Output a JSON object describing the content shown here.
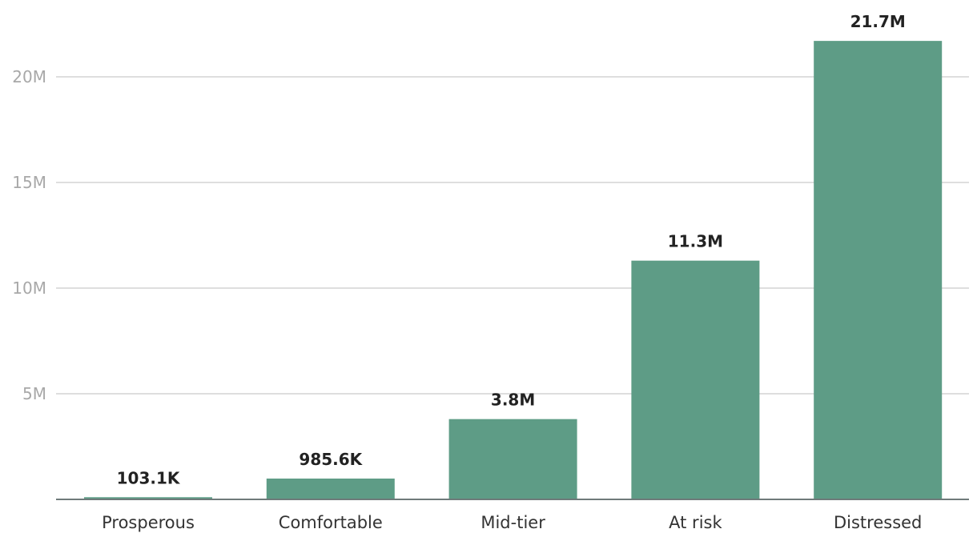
{
  "chart_data": {
    "type": "bar",
    "title": "",
    "xlabel": "",
    "ylabel": "",
    "categories": [
      "Prosperous",
      "Comfortable",
      "Mid-tier",
      "At risk",
      "Distressed"
    ],
    "values": [
      103100,
      985600,
      3800000,
      11300000,
      21700000
    ],
    "data_labels": [
      "103.1K",
      "985.6K",
      "3.8M",
      "11.3M",
      "21.7M"
    ],
    "ylim": [
      0,
      22000000
    ],
    "yticks": [
      5000000,
      10000000,
      15000000,
      20000000
    ],
    "ytick_labels": [
      "5M",
      "10M",
      "15M",
      "20M"
    ],
    "grid": true,
    "bar_color": "#5e9c86"
  }
}
